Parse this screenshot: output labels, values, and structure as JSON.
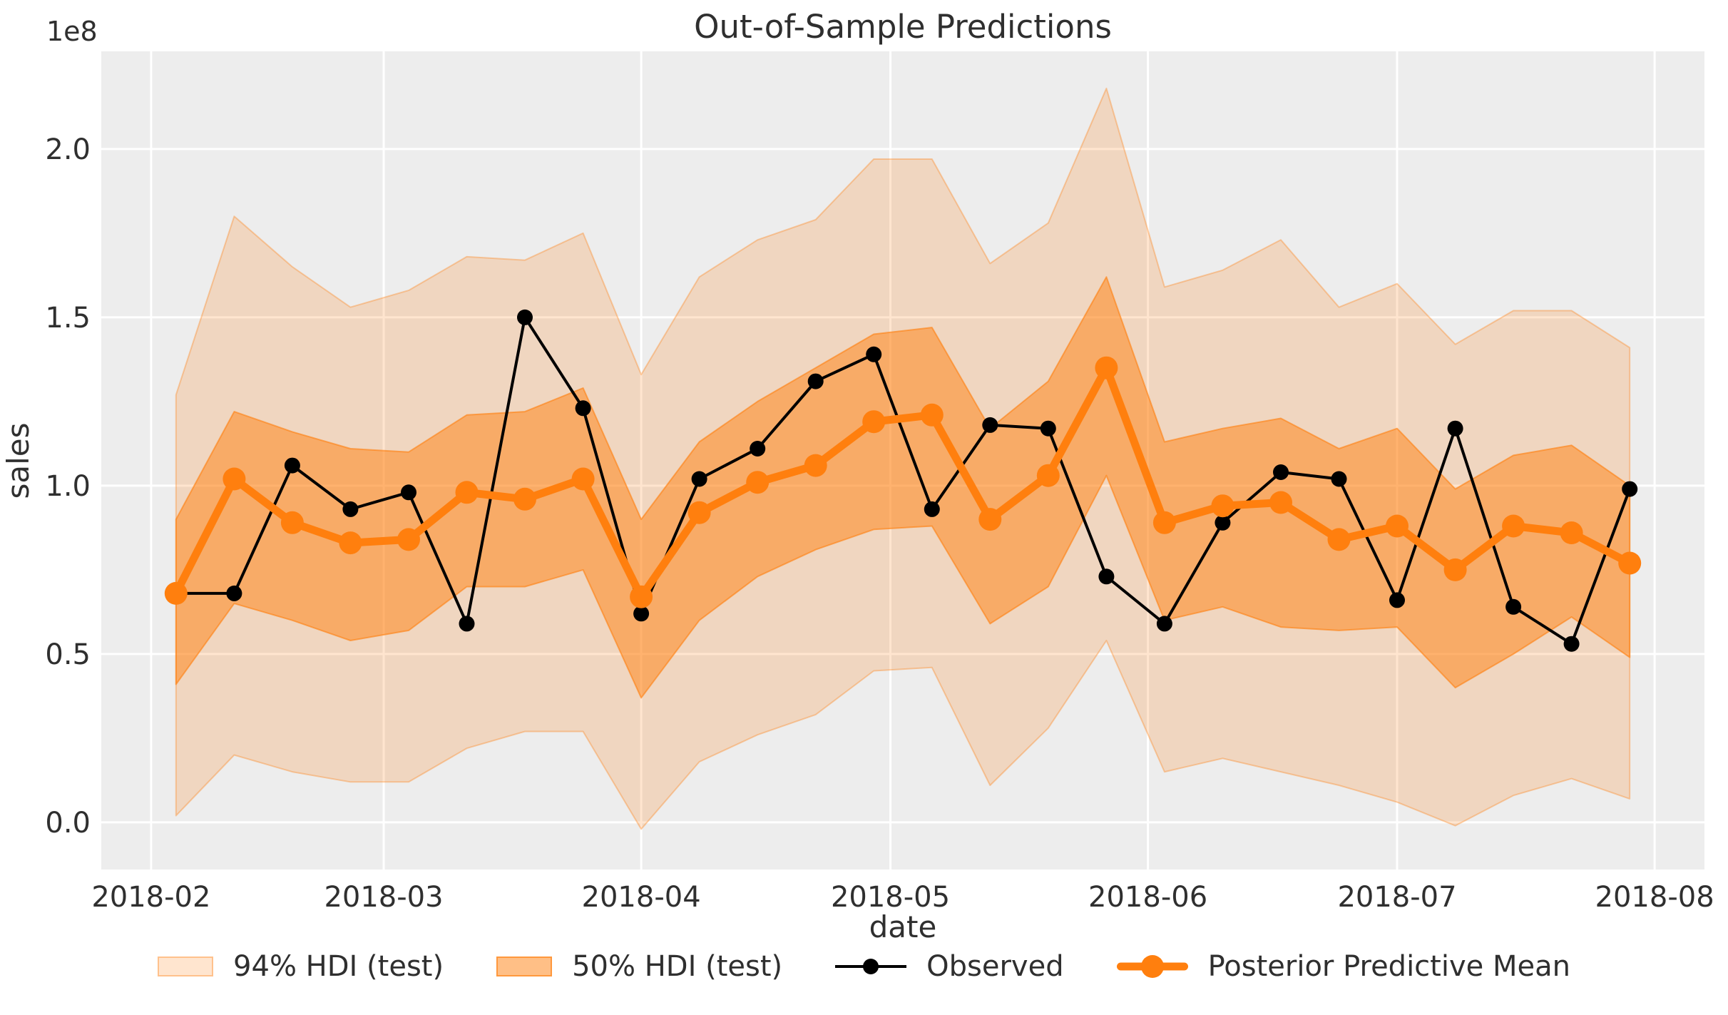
{
  "chart_data": {
    "type": "line",
    "title": "Out-of-Sample Predictions",
    "xlabel": "date",
    "ylabel": "sales",
    "y_offset_text": "1e8",
    "y_unit": "1e8",
    "grid": true,
    "legend_position": "bottom",
    "ylim": [
      -0.14,
      2.29
    ],
    "xlim": [
      "2018-01-26",
      "2018-08-07"
    ],
    "yticks": [
      {
        "value": 0.0,
        "label": "0.0"
      },
      {
        "value": 0.5,
        "label": "0.5"
      },
      {
        "value": 1.0,
        "label": "1.0"
      },
      {
        "value": 1.5,
        "label": "1.5"
      },
      {
        "value": 2.0,
        "label": "2.0"
      }
    ],
    "xticks": [
      {
        "date": "2018-02-01",
        "label": "2018-02"
      },
      {
        "date": "2018-03-01",
        "label": "2018-03"
      },
      {
        "date": "2018-04-01",
        "label": "2018-04"
      },
      {
        "date": "2018-05-01",
        "label": "2018-05"
      },
      {
        "date": "2018-06-01",
        "label": "2018-06"
      },
      {
        "date": "2018-07-01",
        "label": "2018-07"
      },
      {
        "date": "2018-08-01",
        "label": "2018-08"
      }
    ],
    "x": [
      "2018-02-04",
      "2018-02-11",
      "2018-02-18",
      "2018-02-25",
      "2018-03-04",
      "2018-03-11",
      "2018-03-18",
      "2018-03-25",
      "2018-04-01",
      "2018-04-08",
      "2018-04-15",
      "2018-04-22",
      "2018-04-29",
      "2018-05-06",
      "2018-05-13",
      "2018-05-20",
      "2018-05-27",
      "2018-06-03",
      "2018-06-10",
      "2018-06-17",
      "2018-06-24",
      "2018-07-01",
      "2018-07-08",
      "2018-07-15",
      "2018-07-22",
      "2018-07-29"
    ],
    "series": [
      {
        "name": "Observed",
        "color": "#000000",
        "values": [
          0.68,
          0.68,
          1.06,
          0.93,
          0.98,
          0.59,
          1.5,
          1.23,
          0.62,
          1.02,
          1.11,
          1.31,
          1.39,
          0.93,
          1.18,
          1.17,
          0.73,
          0.59,
          0.89,
          1.04,
          1.02,
          0.66,
          1.17,
          0.64,
          0.53,
          0.99
        ]
      },
      {
        "name": "Posterior Predictive Mean",
        "color": "#ff7f0e",
        "values": [
          0.68,
          1.02,
          0.89,
          0.83,
          0.84,
          0.98,
          0.96,
          1.02,
          0.67,
          0.92,
          1.01,
          1.06,
          1.19,
          1.21,
          0.9,
          1.03,
          1.35,
          0.89,
          0.94,
          0.95,
          0.84,
          0.88,
          0.75,
          0.88,
          0.86,
          0.77
        ]
      }
    ],
    "bands": [
      {
        "name": "94% HDI (test)",
        "fill": "rgba(255,127,14,0.2)",
        "edge": "rgba(255,127,14,0.35)",
        "lower": [
          0.02,
          0.2,
          0.15,
          0.12,
          0.12,
          0.22,
          0.27,
          0.27,
          -0.02,
          0.18,
          0.26,
          0.32,
          0.45,
          0.46,
          0.11,
          0.28,
          0.54,
          0.15,
          0.19,
          0.15,
          0.11,
          0.06,
          -0.01,
          0.08,
          0.13,
          0.07
        ],
        "upper": [
          1.27,
          1.8,
          1.65,
          1.53,
          1.58,
          1.68,
          1.67,
          1.75,
          1.33,
          1.62,
          1.73,
          1.79,
          1.97,
          1.97,
          1.66,
          1.78,
          2.18,
          1.59,
          1.64,
          1.73,
          1.53,
          1.6,
          1.42,
          1.52,
          1.52,
          1.41
        ]
      },
      {
        "name": "50% HDI (test)",
        "fill": "rgba(255,127,14,0.5)",
        "edge": "rgba(255,127,14,0.6)",
        "lower": [
          0.41,
          0.65,
          0.6,
          0.54,
          0.57,
          0.7,
          0.7,
          0.75,
          0.37,
          0.6,
          0.73,
          0.81,
          0.87,
          0.88,
          0.59,
          0.7,
          1.03,
          0.6,
          0.64,
          0.58,
          0.57,
          0.58,
          0.4,
          0.5,
          0.61,
          0.49
        ],
        "upper": [
          0.9,
          1.22,
          1.16,
          1.11,
          1.1,
          1.21,
          1.22,
          1.29,
          0.9,
          1.13,
          1.25,
          1.35,
          1.45,
          1.47,
          1.17,
          1.31,
          1.62,
          1.13,
          1.17,
          1.2,
          1.11,
          1.17,
          0.99,
          1.09,
          1.12,
          1.0
        ]
      }
    ],
    "legend": [
      {
        "label": "94% HDI (test)",
        "kind": "patch",
        "band_index": 0
      },
      {
        "label": "50% HDI (test)",
        "kind": "patch",
        "band_index": 1
      },
      {
        "label": "Observed",
        "kind": "line",
        "series_index": 0
      },
      {
        "label": "Posterior Predictive Mean",
        "kind": "line",
        "series_index": 1
      }
    ],
    "colors": {
      "axes_background": "#ededed",
      "grid": "#ffffff",
      "text": "#2f2f2f",
      "observed": "#000000",
      "mean": "#ff7f0e"
    }
  }
}
